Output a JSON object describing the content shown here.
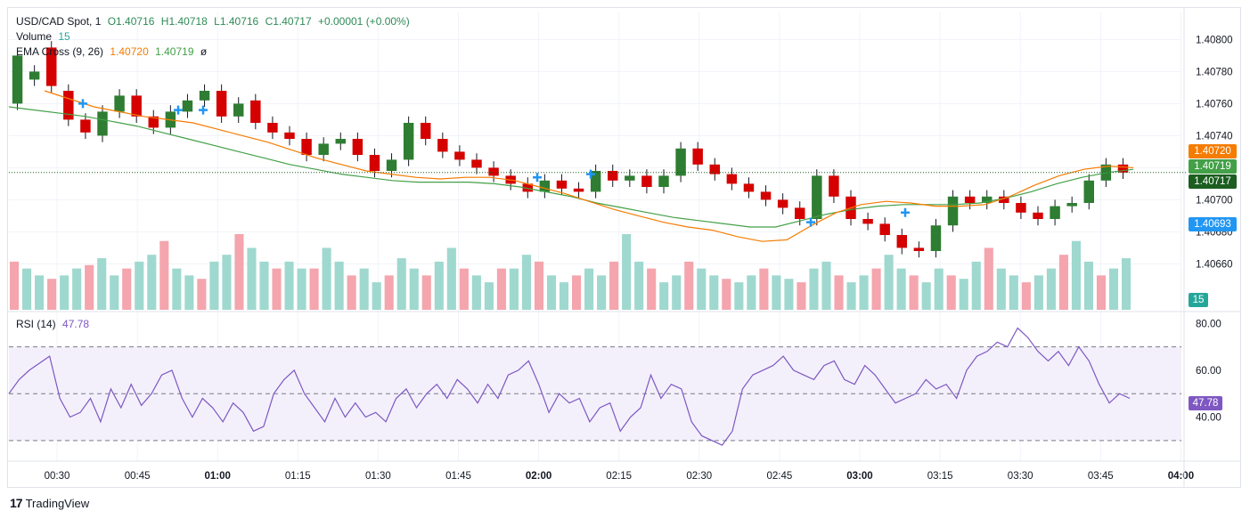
{
  "header": {
    "symbol": "USD/CAD Spot, 1",
    "open": "O1.40716",
    "high": "H1.40718",
    "low": "L1.40716",
    "close": "C1.40717",
    "change": "+0.00001 (+0.00%)"
  },
  "volume_legend": {
    "label": "Volume",
    "value": "15"
  },
  "ema_legend": {
    "label": "EMA Cross (9, 26)",
    "fast": "1.40720",
    "slow": "1.40719",
    "extra": "ø"
  },
  "rsi_legend": {
    "label": "RSI (14)",
    "value": "47.78"
  },
  "price_tags": {
    "ema_fast": "1.40720",
    "ema_slow": "1.40719",
    "last": "1.40717",
    "marker": "1.40693",
    "volume": "15",
    "rsi": "47.78"
  },
  "colors": {
    "up": "#22ab94",
    "down": "#f23645",
    "up_candle": "#2e7d32",
    "down_candle": "#d50000",
    "ema_fast": "#f57c00",
    "ema_slow": "#43a047",
    "rsi_line": "#7e57c2",
    "marker": "#2196f3"
  },
  "branding": {
    "name": "TradingView"
  },
  "chart_data": [
    {
      "type": "candlestick",
      "title": "USD/CAD Spot, 1",
      "y_ticks": [
        "1.40800",
        "1.40780",
        "1.40760",
        "1.40740",
        "1.40720",
        "1.40700",
        "1.40680",
        "1.40660"
      ],
      "ylim": [
        1.40648,
        1.40808
      ],
      "x_ticks": [
        "00:30",
        "00:45",
        "01:00",
        "01:15",
        "01:30",
        "01:45",
        "02:00",
        "02:15",
        "02:30",
        "02:45",
        "03:00",
        "03:15",
        "03:30",
        "03:45",
        "04:00"
      ],
      "series_points": [
        [
          1.4076,
          1.4079
        ],
        [
          1.40775,
          1.4078
        ],
        [
          1.40795,
          1.40771
        ],
        [
          1.40768,
          1.4075
        ],
        [
          1.4075,
          1.40742
        ],
        [
          1.4074,
          1.40755
        ],
        [
          1.40755,
          1.40765
        ],
        [
          1.40765,
          1.40752
        ],
        [
          1.40752,
          1.40745
        ],
        [
          1.40745,
          1.40755
        ],
        [
          1.40755,
          1.40762
        ],
        [
          1.40762,
          1.40768
        ],
        [
          1.40768,
          1.40752
        ],
        [
          1.40752,
          1.4076
        ],
        [
          1.40762,
          1.40748
        ],
        [
          1.40748,
          1.40742
        ],
        [
          1.40742,
          1.40738
        ],
        [
          1.40738,
          1.40728
        ],
        [
          1.40728,
          1.40735
        ],
        [
          1.40735,
          1.40738
        ],
        [
          1.40738,
          1.40728
        ],
        [
          1.40728,
          1.40718
        ],
        [
          1.40718,
          1.40725
        ],
        [
          1.40725,
          1.40748
        ],
        [
          1.40748,
          1.40738
        ],
        [
          1.40738,
          1.4073
        ],
        [
          1.4073,
          1.40725
        ],
        [
          1.40725,
          1.4072
        ],
        [
          1.4072,
          1.40715
        ],
        [
          1.40715,
          1.4071
        ],
        [
          1.4071,
          1.40705
        ],
        [
          1.40705,
          1.40712
        ],
        [
          1.40712,
          1.40707
        ],
        [
          1.40707,
          1.40705
        ],
        [
          1.40705,
          1.40718
        ],
        [
          1.40718,
          1.40712
        ],
        [
          1.40712,
          1.40715
        ],
        [
          1.40715,
          1.40708
        ],
        [
          1.40708,
          1.40715
        ],
        [
          1.40715,
          1.40732
        ],
        [
          1.40732,
          1.40722
        ],
        [
          1.40722,
          1.40716
        ],
        [
          1.40716,
          1.4071
        ],
        [
          1.4071,
          1.40705
        ],
        [
          1.40705,
          1.407
        ],
        [
          1.407,
          1.40695
        ],
        [
          1.40695,
          1.40688
        ],
        [
          1.40688,
          1.40715
        ],
        [
          1.40715,
          1.40702
        ],
        [
          1.40702,
          1.40688
        ],
        [
          1.40688,
          1.40685
        ],
        [
          1.40685,
          1.40678
        ],
        [
          1.40678,
          1.4067
        ],
        [
          1.4067,
          1.40668
        ],
        [
          1.40668,
          1.40684
        ],
        [
          1.40684,
          1.40702
        ],
        [
          1.40702,
          1.40698
        ],
        [
          1.40698,
          1.40702
        ],
        [
          1.40702,
          1.40698
        ],
        [
          1.40698,
          1.40692
        ],
        [
          1.40692,
          1.40688
        ],
        [
          1.40688,
          1.40696
        ],
        [
          1.40696,
          1.40698
        ],
        [
          1.40698,
          1.40712
        ],
        [
          1.40712,
          1.40722
        ],
        [
          1.40722,
          1.40717
        ]
      ],
      "ema_fast": [
        1.40768,
        1.40763,
        1.40758,
        1.40755,
        1.40752,
        1.4075,
        1.40748,
        1.40744,
        1.4074,
        1.40736,
        1.40731,
        1.40726,
        1.40722,
        1.40718,
        1.40716,
        1.40714,
        1.40713,
        1.40714,
        1.40714,
        1.40712,
        1.40708,
        1.40704,
        1.40699,
        1.40694,
        1.4069,
        1.40686,
        1.40683,
        1.40681,
        1.40677,
        1.40674,
        1.40675,
        1.40684,
        1.40692,
        1.40697,
        1.40699,
        1.40698,
        1.40696,
        1.40696,
        1.40697,
        1.40702,
        1.40709,
        1.40715,
        1.40719,
        1.40721,
        1.4072
      ],
      "ema_slow": [
        1.40758,
        1.40756,
        1.40754,
        1.40752,
        1.40749,
        1.40746,
        1.40742,
        1.40738,
        1.40734,
        1.4073,
        1.40726,
        1.40722,
        1.40719,
        1.40716,
        1.40714,
        1.40712,
        1.40711,
        1.40711,
        1.40711,
        1.4071,
        1.40708,
        1.40705,
        1.40702,
        1.40698,
        1.40695,
        1.40692,
        1.40689,
        1.40687,
        1.40685,
        1.40683,
        1.40683,
        1.40687,
        1.40691,
        1.40694,
        1.40696,
        1.40697,
        1.40697,
        1.40697,
        1.40698,
        1.40701,
        1.40705,
        1.4071,
        1.40714,
        1.40717,
        1.40719
      ]
    },
    {
      "type": "bar",
      "title": "Volume",
      "values": [
        14,
        12,
        10,
        9,
        10,
        12,
        13,
        15,
        10,
        12,
        14,
        16,
        20,
        12,
        10,
        9,
        14,
        16,
        22,
        18,
        14,
        12,
        14,
        12,
        12,
        18,
        14,
        10,
        12,
        8,
        10,
        15,
        12,
        10,
        14,
        18,
        12,
        10,
        8,
        12,
        12,
        16,
        14,
        10,
        8,
        10,
        12,
        10,
        14,
        22,
        14,
        12,
        8,
        10,
        14,
        12,
        10,
        9,
        8,
        10,
        12,
        10,
        9,
        8,
        12,
        14,
        10,
        8,
        10,
        12,
        16,
        12,
        10,
        8,
        12,
        10,
        9,
        14,
        18,
        12,
        10,
        8,
        10,
        12,
        16,
        20,
        14,
        10,
        12,
        15
      ],
      "last_value": 15
    },
    {
      "type": "line",
      "title": "RSI (14)",
      "y_ticks": [
        "80.00",
        "60.00",
        "40.00"
      ],
      "ylim": [
        25,
        82
      ],
      "bands": [
        70,
        50,
        30
      ],
      "values": [
        50,
        56,
        60,
        63,
        66,
        48,
        40,
        42,
        48,
        38,
        52,
        44,
        54,
        45,
        50,
        58,
        60,
        48,
        40,
        48,
        44,
        38,
        46,
        42,
        34,
        36,
        50,
        56,
        60,
        50,
        44,
        38,
        48,
        40,
        46,
        40,
        42,
        38,
        48,
        52,
        44,
        50,
        54,
        48,
        56,
        52,
        46,
        54,
        48,
        58,
        60,
        64,
        54,
        42,
        50,
        46,
        48,
        38,
        44,
        46,
        34,
        40,
        44,
        58,
        48,
        54,
        52,
        38,
        32,
        30,
        28,
        34,
        52,
        58,
        60,
        62,
        66,
        60,
        58,
        56,
        62,
        64,
        56,
        54,
        62,
        58,
        52,
        46,
        48,
        50,
        56,
        52,
        54,
        48,
        60,
        66,
        68,
        72,
        70,
        78,
        74,
        68,
        64,
        68,
        62,
        70,
        64,
        54,
        46,
        50,
        48
      ]
    }
  ]
}
